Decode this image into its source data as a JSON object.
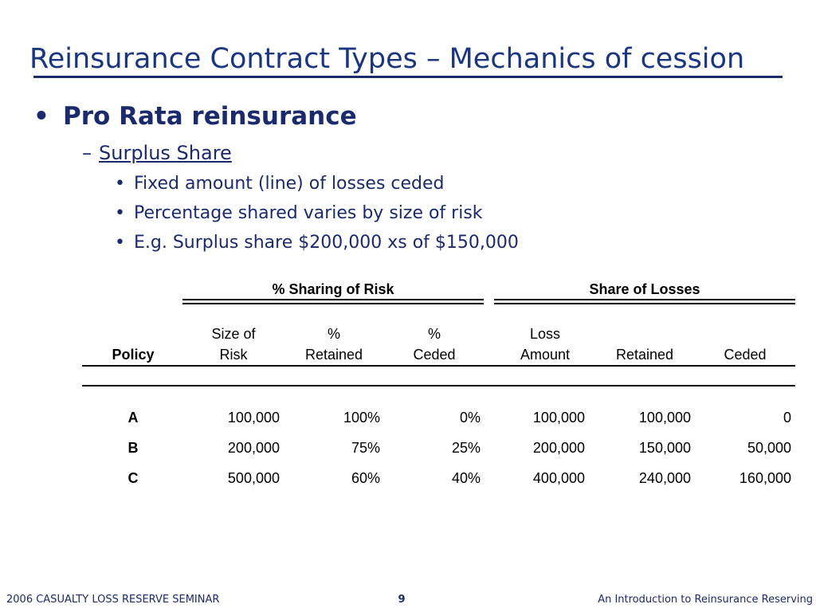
{
  "slide": {
    "title": "Reinsurance Contract Types – Mechanics of cession",
    "bullet1": "Pro Rata reinsurance",
    "bullet2": "Surplus Share",
    "bullets3": [
      "Fixed amount (line) of losses ceded",
      "Percentage shared varies by size of risk",
      "E.g.  Surplus share $200,000 xs of $150,000"
    ]
  },
  "table": {
    "group_headers": [
      "% Sharing of Risk",
      "Share of Losses"
    ],
    "col_top": [
      "",
      "Size of",
      "%",
      "%",
      "Loss",
      "",
      ""
    ],
    "col_bottom": [
      "Policy",
      "Risk",
      "Retained",
      "Ceded",
      "Amount",
      "Retained",
      "Ceded"
    ],
    "rows": [
      [
        "A",
        "100,000",
        "100%",
        "0%",
        "100,000",
        "100,000",
        "0"
      ],
      [
        "B",
        "200,000",
        "75%",
        "25%",
        "200,000",
        "150,000",
        "50,000"
      ],
      [
        "C",
        "500,000",
        "60%",
        "40%",
        "400,000",
        "240,000",
        "160,000"
      ]
    ]
  },
  "footer": {
    "left": "2006 CASUALTY LOSS RESERVE SEMINAR",
    "page": "9",
    "right": "An Introduction to Reinsurance Reserving"
  }
}
